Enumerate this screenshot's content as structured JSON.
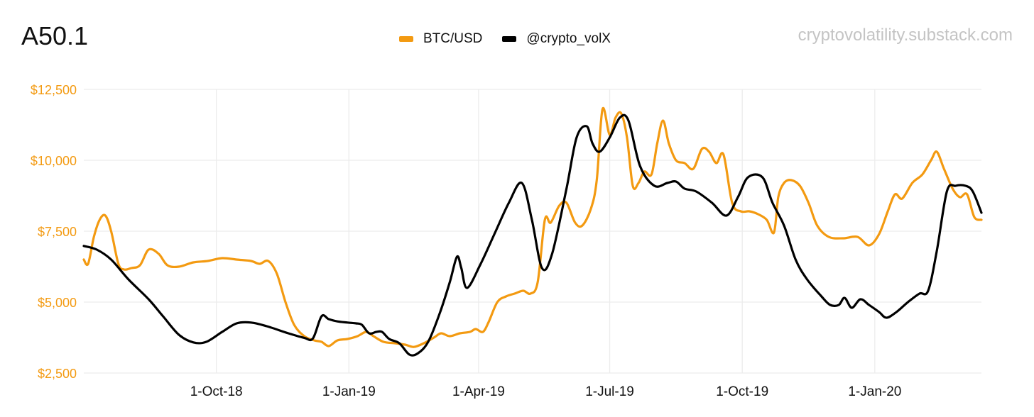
{
  "header": {
    "title": "A50.1",
    "watermark": "cryptovolatility.substack.com"
  },
  "colors": {
    "btc": "#f39a11",
    "volx": "#000000",
    "grid": "#ececec",
    "ytick": "#f39a11",
    "xtick": "#111111"
  },
  "chart_data": {
    "type": "line",
    "title": "A50.1",
    "legend_position": "top-center",
    "grid": true,
    "xlabel": "",
    "ylabel": "",
    "x_range": [
      "2018-07-01",
      "2020-03-15"
    ],
    "ylim": [
      2500,
      12500
    ],
    "y_ticks": [
      2500,
      5000,
      7500,
      10000,
      12500
    ],
    "y_tick_labels": [
      "$2,500",
      "$5,000",
      "$7,500",
      "$10,000",
      "$12,500"
    ],
    "x_ticks": [
      "2018-10-01",
      "2019-01-01",
      "2019-04-01",
      "2019-07-01",
      "2019-10-01",
      "2020-01-01"
    ],
    "x_tick_labels": [
      "1-Oct-18",
      "1-Jan-19",
      "1-Apr-19",
      "1-Jul-19",
      "1-Oct-19",
      "1-Jan-20"
    ],
    "series": [
      {
        "name": "BTC/USD",
        "color": "#f39a11",
        "points": [
          [
            "2018-07-01",
            6500
          ],
          [
            "2018-07-04",
            6350
          ],
          [
            "2018-07-08",
            7300
          ],
          [
            "2018-07-12",
            7900
          ],
          [
            "2018-07-16",
            8050
          ],
          [
            "2018-07-20",
            7500
          ],
          [
            "2018-07-25",
            6350
          ],
          [
            "2018-07-29",
            6150
          ],
          [
            "2018-08-03",
            6200
          ],
          [
            "2018-08-09",
            6300
          ],
          [
            "2018-08-15",
            6850
          ],
          [
            "2018-08-22",
            6700
          ],
          [
            "2018-08-28",
            6300
          ],
          [
            "2018-09-05",
            6250
          ],
          [
            "2018-09-15",
            6400
          ],
          [
            "2018-09-25",
            6450
          ],
          [
            "2018-10-05",
            6550
          ],
          [
            "2018-10-15",
            6500
          ],
          [
            "2018-10-25",
            6450
          ],
          [
            "2018-10-31",
            6350
          ],
          [
            "2018-11-06",
            6450
          ],
          [
            "2018-11-12",
            6000
          ],
          [
            "2018-11-18",
            5000
          ],
          [
            "2018-11-24",
            4200
          ],
          [
            "2018-12-01",
            3800
          ],
          [
            "2018-12-08",
            3650
          ],
          [
            "2018-12-13",
            3600
          ],
          [
            "2018-12-18",
            3450
          ],
          [
            "2018-12-24",
            3650
          ],
          [
            "2018-12-31",
            3700
          ],
          [
            "2019-01-07",
            3800
          ],
          [
            "2019-01-13",
            3950
          ],
          [
            "2019-01-18",
            3800
          ],
          [
            "2019-01-25",
            3600
          ],
          [
            "2019-02-02",
            3550
          ],
          [
            "2019-02-09",
            3500
          ],
          [
            "2019-02-15",
            3420
          ],
          [
            "2019-02-22",
            3550
          ],
          [
            "2019-03-01",
            3750
          ],
          [
            "2019-03-06",
            3900
          ],
          [
            "2019-03-12",
            3800
          ],
          [
            "2019-03-19",
            3900
          ],
          [
            "2019-03-26",
            3950
          ],
          [
            "2019-03-30",
            4050
          ],
          [
            "2019-04-04",
            3950
          ],
          [
            "2019-04-08",
            4300
          ],
          [
            "2019-04-14",
            5000
          ],
          [
            "2019-04-20",
            5200
          ],
          [
            "2019-04-26",
            5300
          ],
          [
            "2019-05-02",
            5400
          ],
          [
            "2019-05-07",
            5300
          ],
          [
            "2019-05-12",
            5700
          ],
          [
            "2019-05-17",
            7900
          ],
          [
            "2019-05-21",
            7800
          ],
          [
            "2019-05-27",
            8400
          ],
          [
            "2019-06-01",
            8500
          ],
          [
            "2019-06-07",
            7800
          ],
          [
            "2019-06-12",
            7700
          ],
          [
            "2019-06-18",
            8300
          ],
          [
            "2019-06-22",
            9300
          ],
          [
            "2019-06-26",
            11800
          ],
          [
            "2019-07-01",
            10900
          ],
          [
            "2019-07-05",
            11500
          ],
          [
            "2019-07-09",
            11650
          ],
          [
            "2019-07-13",
            10800
          ],
          [
            "2019-07-17",
            9100
          ],
          [
            "2019-07-21",
            9200
          ],
          [
            "2019-07-25",
            9600
          ],
          [
            "2019-07-30",
            9500
          ],
          [
            "2019-08-03",
            10600
          ],
          [
            "2019-08-07",
            11400
          ],
          [
            "2019-08-11",
            10600
          ],
          [
            "2019-08-16",
            10000
          ],
          [
            "2019-08-22",
            9900
          ],
          [
            "2019-08-28",
            9700
          ],
          [
            "2019-09-03",
            10400
          ],
          [
            "2019-09-08",
            10300
          ],
          [
            "2019-09-13",
            9900
          ],
          [
            "2019-09-18",
            10200
          ],
          [
            "2019-09-24",
            8500
          ],
          [
            "2019-09-30",
            8200
          ],
          [
            "2019-10-06",
            8200
          ],
          [
            "2019-10-12",
            8100
          ],
          [
            "2019-10-18",
            7900
          ],
          [
            "2019-10-23",
            7450
          ],
          [
            "2019-10-26",
            8700
          ],
          [
            "2019-10-30",
            9200
          ],
          [
            "2019-11-04",
            9300
          ],
          [
            "2019-11-10",
            9100
          ],
          [
            "2019-11-16",
            8500
          ],
          [
            "2019-11-22",
            7700
          ],
          [
            "2019-11-30",
            7300
          ],
          [
            "2019-12-10",
            7250
          ],
          [
            "2019-12-20",
            7300
          ],
          [
            "2019-12-28",
            7000
          ],
          [
            "2020-01-04",
            7400
          ],
          [
            "2020-01-10",
            8200
          ],
          [
            "2020-01-15",
            8800
          ],
          [
            "2020-01-20",
            8650
          ],
          [
            "2020-01-27",
            9200
          ],
          [
            "2020-02-03",
            9500
          ],
          [
            "2020-02-09",
            10000
          ],
          [
            "2020-02-13",
            10300
          ],
          [
            "2020-02-18",
            9700
          ],
          [
            "2020-02-24",
            9000
          ],
          [
            "2020-02-29",
            8700
          ],
          [
            "2020-03-05",
            8800
          ],
          [
            "2020-03-10",
            8000
          ],
          [
            "2020-03-15",
            7900
          ]
        ]
      },
      {
        "name": "@crypto_volX",
        "color": "#000000",
        "points": [
          [
            "2018-07-01",
            6980
          ],
          [
            "2018-07-10",
            6850
          ],
          [
            "2018-07-20",
            6500
          ],
          [
            "2018-08-01",
            5800
          ],
          [
            "2018-08-15",
            5100
          ],
          [
            "2018-08-25",
            4500
          ],
          [
            "2018-09-05",
            3850
          ],
          [
            "2018-09-15",
            3580
          ],
          [
            "2018-09-24",
            3600
          ],
          [
            "2018-10-05",
            3950
          ],
          [
            "2018-10-15",
            4250
          ],
          [
            "2018-10-25",
            4280
          ],
          [
            "2018-11-05",
            4150
          ],
          [
            "2018-11-20",
            3900
          ],
          [
            "2018-12-01",
            3740
          ],
          [
            "2018-12-07",
            3720
          ],
          [
            "2018-12-13",
            4500
          ],
          [
            "2018-12-18",
            4400
          ],
          [
            "2018-12-24",
            4320
          ],
          [
            "2018-12-31",
            4280
          ],
          [
            "2019-01-06",
            4250
          ],
          [
            "2019-01-10",
            4200
          ],
          [
            "2019-01-15",
            3900
          ],
          [
            "2019-01-20",
            3950
          ],
          [
            "2019-01-24",
            3950
          ],
          [
            "2019-01-29",
            3700
          ],
          [
            "2019-02-05",
            3550
          ],
          [
            "2019-02-12",
            3150
          ],
          [
            "2019-02-18",
            3200
          ],
          [
            "2019-02-25",
            3600
          ],
          [
            "2019-03-05",
            4600
          ],
          [
            "2019-03-12",
            5700
          ],
          [
            "2019-03-17",
            6600
          ],
          [
            "2019-03-20",
            6200
          ],
          [
            "2019-03-24",
            5500
          ],
          [
            "2019-04-02",
            6300
          ],
          [
            "2019-04-12",
            7400
          ],
          [
            "2019-04-22",
            8500
          ],
          [
            "2019-05-01",
            9200
          ],
          [
            "2019-05-08",
            7900
          ],
          [
            "2019-05-15",
            6200
          ],
          [
            "2019-05-22",
            6700
          ],
          [
            "2019-06-01",
            9000
          ],
          [
            "2019-06-08",
            10800
          ],
          [
            "2019-06-15",
            11200
          ],
          [
            "2019-06-19",
            10600
          ],
          [
            "2019-06-24",
            10300
          ],
          [
            "2019-07-01",
            10800
          ],
          [
            "2019-07-08",
            11500
          ],
          [
            "2019-07-14",
            11400
          ],
          [
            "2019-07-22",
            9800
          ],
          [
            "2019-08-01",
            9100
          ],
          [
            "2019-08-10",
            9200
          ],
          [
            "2019-08-16",
            9250
          ],
          [
            "2019-08-22",
            9000
          ],
          [
            "2019-08-30",
            8900
          ],
          [
            "2019-09-10",
            8500
          ],
          [
            "2019-09-20",
            8050
          ],
          [
            "2019-09-28",
            8700
          ],
          [
            "2019-10-05",
            9400
          ],
          [
            "2019-10-15",
            9400
          ],
          [
            "2019-10-22",
            8500
          ],
          [
            "2019-10-30",
            7700
          ],
          [
            "2019-11-07",
            6500
          ],
          [
            "2019-11-15",
            5800
          ],
          [
            "2019-11-25",
            5200
          ],
          [
            "2019-12-01",
            4900
          ],
          [
            "2019-12-07",
            4900
          ],
          [
            "2019-12-11",
            5150
          ],
          [
            "2019-12-16",
            4800
          ],
          [
            "2019-12-22",
            5100
          ],
          [
            "2019-12-28",
            4900
          ],
          [
            "2020-01-04",
            4650
          ],
          [
            "2020-01-09",
            4450
          ],
          [
            "2020-01-16",
            4650
          ],
          [
            "2020-01-24",
            5000
          ],
          [
            "2020-02-01",
            5300
          ],
          [
            "2020-02-07",
            5400
          ],
          [
            "2020-02-13",
            6800
          ],
          [
            "2020-02-20",
            8900
          ],
          [
            "2020-02-26",
            9100
          ],
          [
            "2020-03-04",
            9100
          ],
          [
            "2020-03-09",
            8900
          ],
          [
            "2020-03-15",
            8150
          ]
        ]
      }
    ]
  }
}
